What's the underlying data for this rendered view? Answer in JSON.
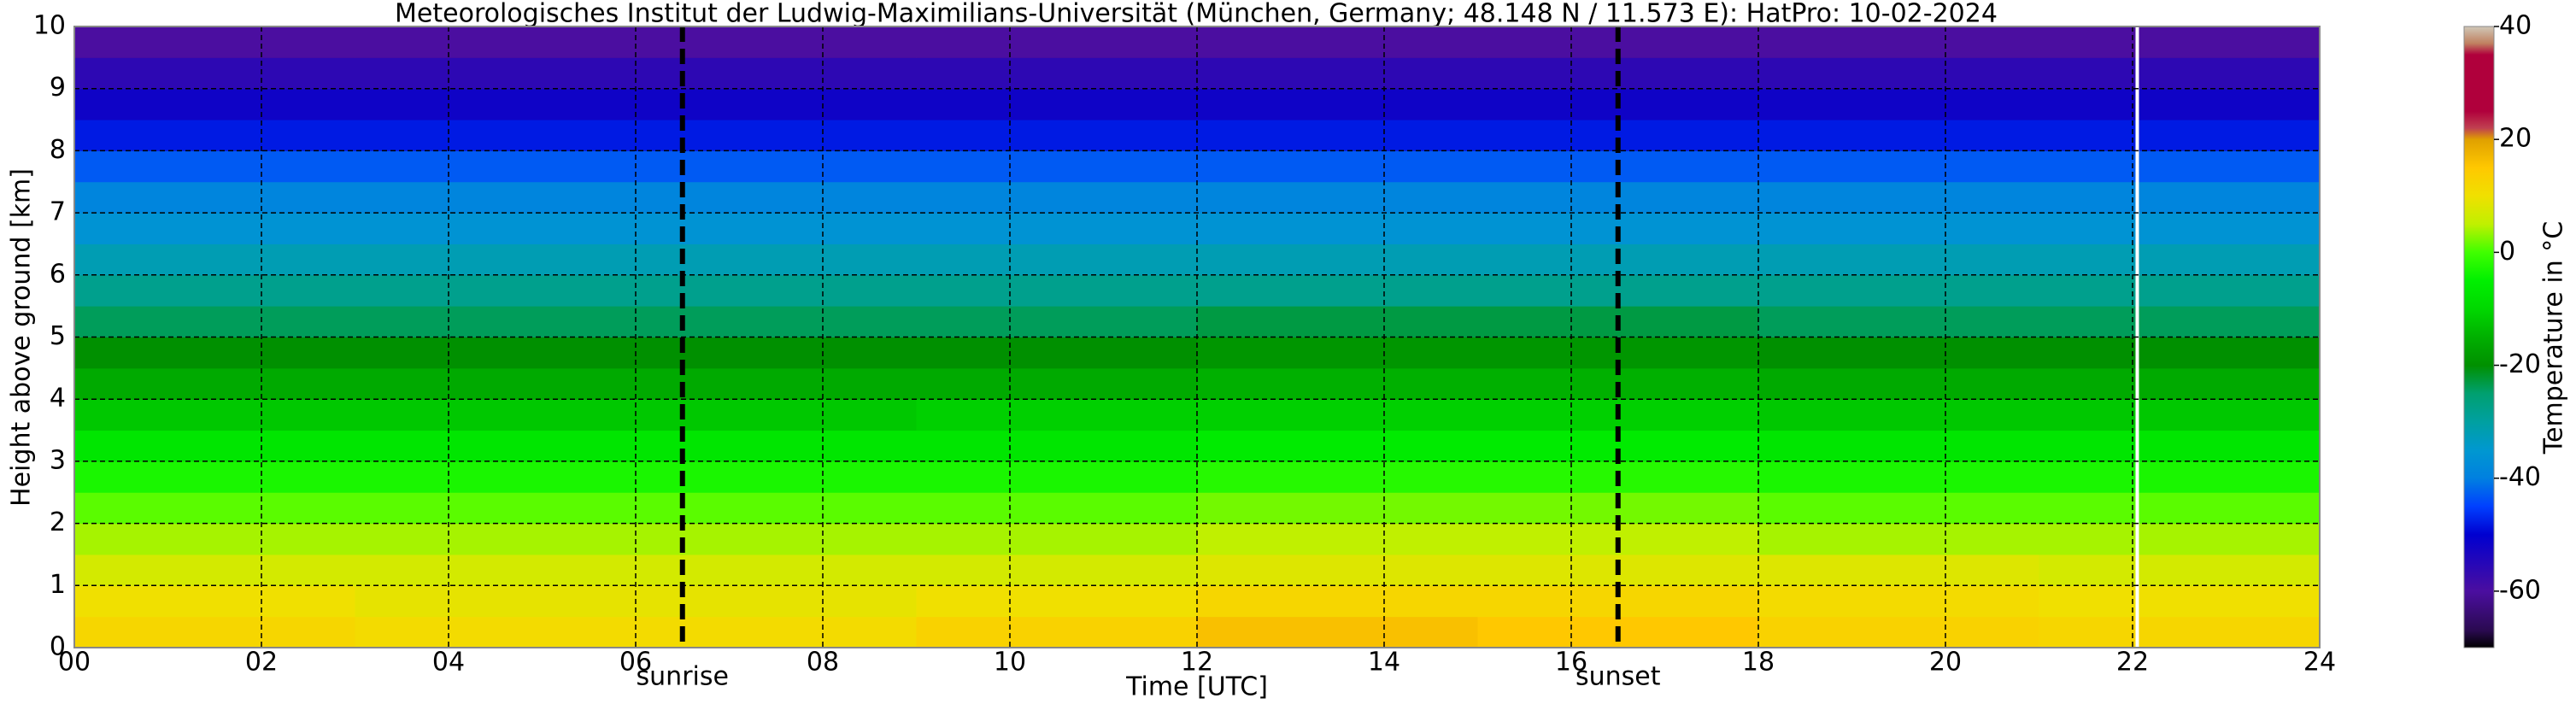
{
  "chart_data": {
    "type": "heatmap",
    "title": "Meteorologisches Institut der Ludwig-Maximilians-Universität (München, Germany; 48.148 N / 11.573 E):    HatPro: 10-02-2024",
    "x_label": "Time [UTC]",
    "y_label": "Height above ground [km]",
    "colorbar_label": "Temperature in °C",
    "xbins": [
      0,
      3,
      6,
      9,
      12,
      15,
      18,
      21,
      24
    ],
    "ybins": [
      0,
      0.5,
      1,
      1.5,
      2,
      2.5,
      3,
      3.5,
      4,
      4.5,
      5,
      5.5,
      6,
      6.5,
      7,
      7.5,
      8,
      8.5,
      9,
      9.5,
      10
    ],
    "values": [
      [
        12,
        11,
        11,
        13,
        16,
        15,
        13,
        12
      ],
      [
        10,
        9,
        9,
        10,
        12,
        12,
        11,
        10
      ],
      [
        7,
        7,
        7,
        7,
        8,
        8,
        8,
        7
      ],
      [
        4,
        4,
        4,
        4,
        5,
        5,
        4,
        4
      ],
      [
        1,
        1,
        1,
        1,
        2,
        2,
        1,
        1
      ],
      [
        -3,
        -3,
        -3,
        -3,
        -2,
        -2,
        -3,
        -3
      ],
      [
        -7,
        -7,
        -7,
        -7,
        -6,
        -6,
        -7,
        -7
      ],
      [
        -12,
        -12,
        -12,
        -11,
        -11,
        -11,
        -12,
        -12
      ],
      [
        -16,
        -16,
        -16,
        -16,
        -15,
        -15,
        -16,
        -16
      ],
      [
        -20,
        -20,
        -20,
        -20,
        -19,
        -19,
        -20,
        -20
      ],
      [
        -24,
        -24,
        -24,
        -24,
        -23,
        -23,
        -24,
        -24
      ],
      [
        -28,
        -28,
        -28,
        -28,
        -28,
        -28,
        -28,
        -28
      ],
      [
        -32,
        -32,
        -32,
        -32,
        -32,
        -32,
        -32,
        -32
      ],
      [
        -36,
        -36,
        -36,
        -36,
        -36,
        -36,
        -36,
        -36
      ],
      [
        -39,
        -39,
        -39,
        -39,
        -39,
        -39,
        -39,
        -39
      ],
      [
        -43,
        -43,
        -43,
        -43,
        -43,
        -43,
        -43,
        -43
      ],
      [
        -48,
        -48,
        -48,
        -48,
        -48,
        -48,
        -48,
        -48
      ],
      [
        -52,
        -52,
        -52,
        -52,
        -52,
        -52,
        -52,
        -52
      ],
      [
        -56,
        -56,
        -56,
        -56,
        -56,
        -56,
        -56,
        -56
      ],
      [
        -60,
        -60,
        -60,
        -60,
        -60,
        -60,
        -60,
        -60
      ]
    ],
    "xlim": [
      0,
      24
    ],
    "ylim": [
      0,
      10
    ],
    "xticks": [
      {
        "value": 0,
        "label": "00"
      },
      {
        "value": 2,
        "label": "02"
      },
      {
        "value": 4,
        "label": "04"
      },
      {
        "value": 6,
        "label": "06"
      },
      {
        "value": 8,
        "label": "08"
      },
      {
        "value": 10,
        "label": "10"
      },
      {
        "value": 12,
        "label": "12"
      },
      {
        "value": 14,
        "label": "14"
      },
      {
        "value": 16,
        "label": "16"
      },
      {
        "value": 18,
        "label": "18"
      },
      {
        "value": 20,
        "label": "20"
      },
      {
        "value": 22,
        "label": "22"
      },
      {
        "value": 24,
        "label": "24"
      }
    ],
    "yticks": [
      0,
      1,
      2,
      3,
      4,
      5,
      6,
      7,
      8,
      9,
      10
    ],
    "clim": [
      -70,
      40
    ],
    "cticks": [
      -60,
      -40,
      -20,
      0,
      20,
      40
    ],
    "colorscale": [
      {
        "value": -70,
        "color": "#000000"
      },
      {
        "value": -67,
        "color": "#2a0a50"
      },
      {
        "value": -60,
        "color": "#4b0ea0"
      },
      {
        "value": -50,
        "color": "#0000d0"
      },
      {
        "value": -45,
        "color": "#0040ff"
      },
      {
        "value": -40,
        "color": "#0080e0"
      },
      {
        "value": -35,
        "color": "#0098d0"
      },
      {
        "value": -30,
        "color": "#00a0a0"
      },
      {
        "value": -25,
        "color": "#00a070"
      },
      {
        "value": -20,
        "color": "#009000"
      },
      {
        "value": -15,
        "color": "#00b000"
      },
      {
        "value": -10,
        "color": "#00d800"
      },
      {
        "value": -5,
        "color": "#00f000"
      },
      {
        "value": 0,
        "color": "#40ff00"
      },
      {
        "value": 5,
        "color": "#c0f000"
      },
      {
        "value": 10,
        "color": "#f0e000"
      },
      {
        "value": 15,
        "color": "#ffc800"
      },
      {
        "value": 20,
        "color": "#e0a000"
      },
      {
        "value": 22,
        "color": "#c04050"
      },
      {
        "value": 25,
        "color": "#b0003c"
      },
      {
        "value": 35,
        "color": "#b0003c"
      },
      {
        "value": 37,
        "color": "#c08060"
      },
      {
        "value": 40,
        "color": "#d0c8b8"
      }
    ],
    "events": [
      {
        "name": "sunrise",
        "value": 6.5
      },
      {
        "name": "sunset",
        "value": 16.5
      }
    ],
    "missing_times": [
      22.05
    ],
    "grid": true
  }
}
